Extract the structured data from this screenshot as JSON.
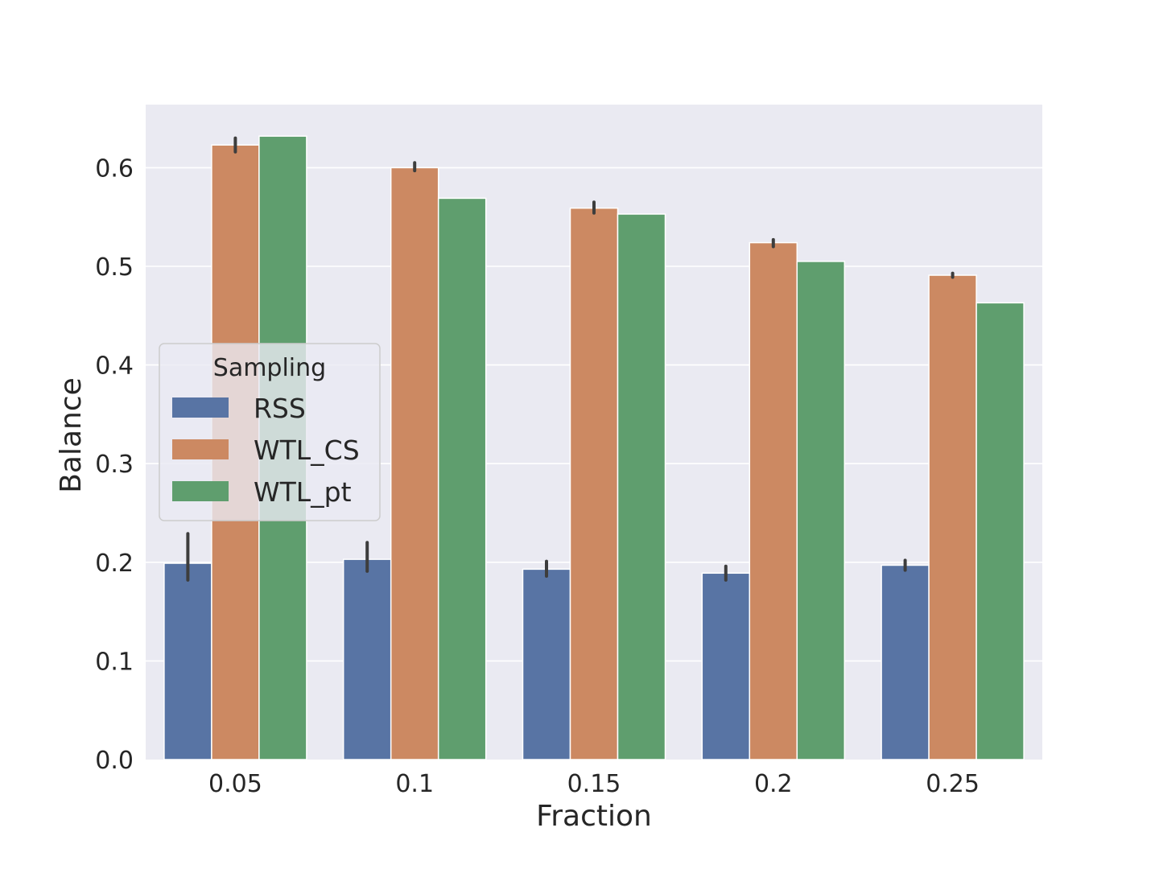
{
  "chart_data": {
    "type": "bar",
    "xlabel": "Fraction",
    "ylabel": "Balance",
    "categories": [
      "0.05",
      "0.1",
      "0.15",
      "0.2",
      "0.25"
    ],
    "ylim": [
      0,
      0.655
    ],
    "yticks": [
      "0.0",
      "0.1",
      "0.2",
      "0.3",
      "0.4",
      "0.5",
      "0.6"
    ],
    "grid": true,
    "legend": {
      "title": "Sampling",
      "placement": "center-left"
    },
    "series": [
      {
        "name": "RSS",
        "color": "#5874a4",
        "values": [
          0.199,
          0.203,
          0.193,
          0.189,
          0.197
        ],
        "error": [
          [
            0.182,
            0.229
          ],
          [
            0.191,
            0.22
          ],
          [
            0.186,
            0.201
          ],
          [
            0.182,
            0.196
          ],
          [
            0.192,
            0.202
          ]
        ]
      },
      {
        "name": "WTL_CS",
        "color": "#cc8962",
        "values": [
          0.623,
          0.6,
          0.559,
          0.524,
          0.491
        ],
        "error": [
          [
            0.616,
            0.63
          ],
          [
            0.597,
            0.605
          ],
          [
            0.554,
            0.565
          ],
          [
            0.52,
            0.527
          ],
          [
            0.489,
            0.493
          ]
        ]
      },
      {
        "name": "WTL_pt",
        "color": "#5f9e6e",
        "values": [
          0.632,
          0.569,
          0.553,
          0.505,
          0.463
        ],
        "error": null
      }
    ]
  }
}
